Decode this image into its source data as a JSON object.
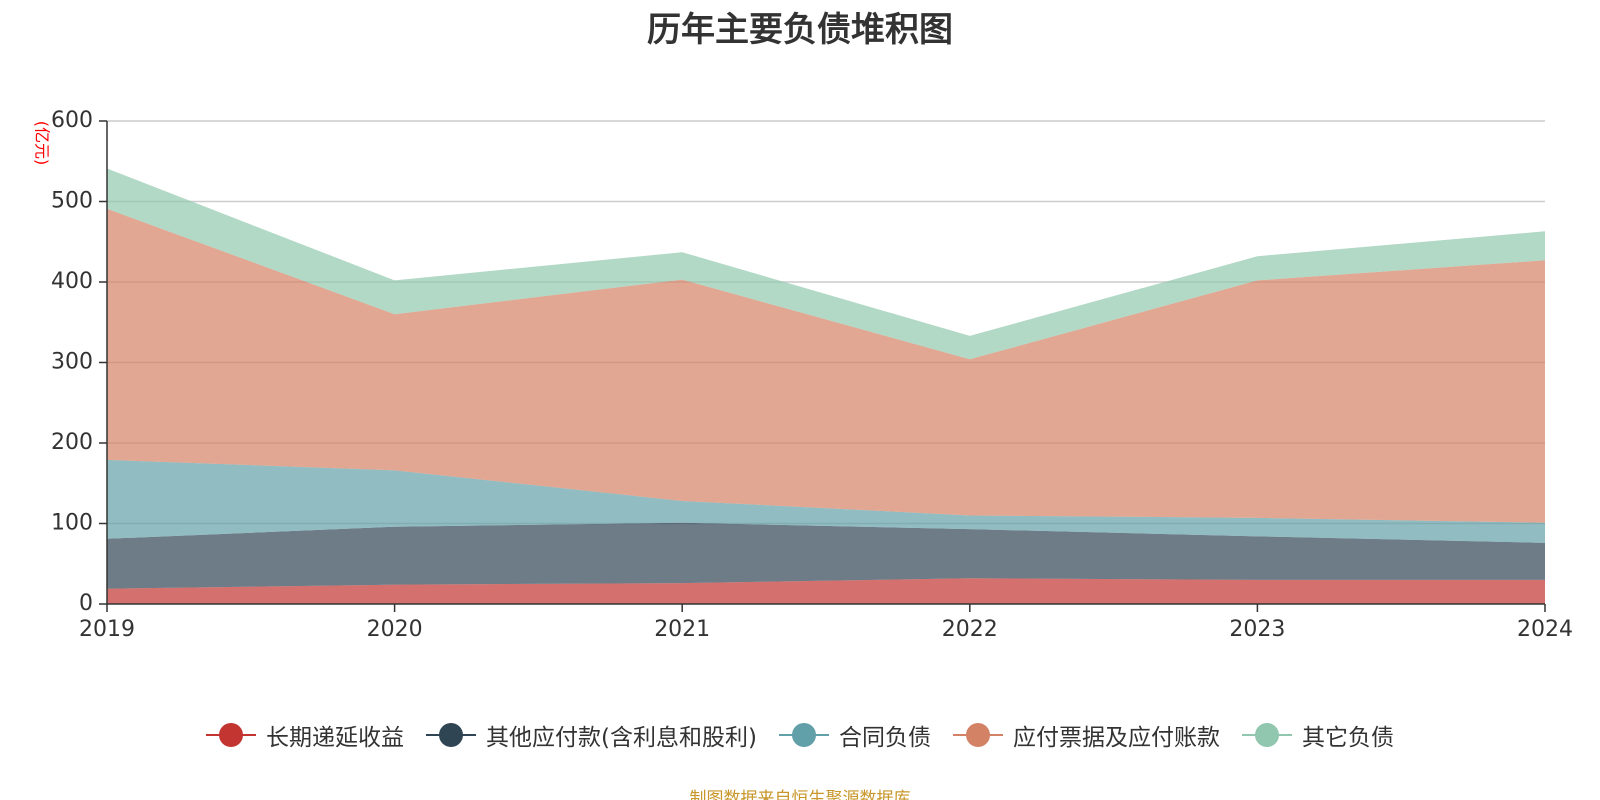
{
  "chart_data": {
    "type": "area",
    "stacked": true,
    "title": "历年主要负债堆积图",
    "unit_label": "(亿元)",
    "categories": [
      "2019",
      "2020",
      "2021",
      "2022",
      "2023",
      "2024"
    ],
    "ylim": [
      0,
      600
    ],
    "yticks": [
      0,
      100,
      200,
      300,
      400,
      500,
      600
    ],
    "grid": true,
    "legend_position": "bottom",
    "series": [
      {
        "name": "长期递延收益",
        "color": "#c23531",
        "values": [
          19,
          24,
          26,
          32,
          30,
          30
        ]
      },
      {
        "name": "其他应付款(含利息和股利)",
        "color": "#2f4554",
        "values": [
          62,
          72,
          75,
          61,
          54,
          46
        ]
      },
      {
        "name": "合同负债",
        "color": "#61a0a8",
        "values": [
          98,
          70,
          27,
          17,
          23,
          25
        ]
      },
      {
        "name": "应付票据及应付账款",
        "color": "#d48265",
        "values": [
          312,
          194,
          275,
          194,
          295,
          326
        ]
      },
      {
        "name": "其它负债",
        "color": "#91c7ae",
        "values": [
          50,
          42,
          34,
          29,
          30,
          36
        ]
      }
    ],
    "source_note": "制图数据来自恒生聚源数据库"
  }
}
